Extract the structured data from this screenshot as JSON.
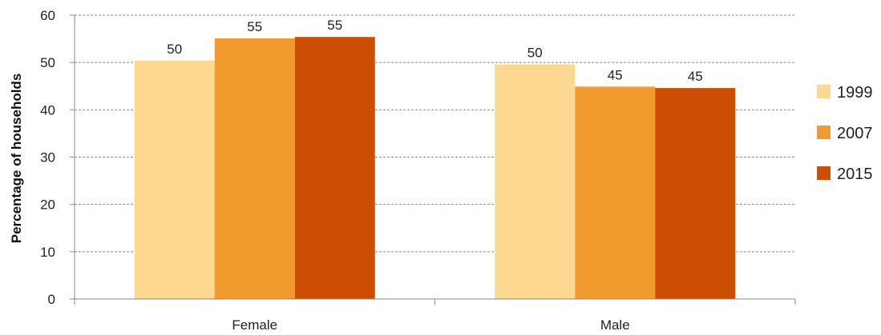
{
  "chart_data": {
    "type": "bar",
    "title": "",
    "xlabel": "",
    "ylabel": "Percentage of households",
    "categories": [
      "Female",
      "Male"
    ],
    "series": [
      {
        "name": "1999",
        "color": "#FDD890",
        "values": [
          50.4,
          49.6
        ],
        "labels": [
          "50",
          "50"
        ]
      },
      {
        "name": "2007",
        "color": "#F19B2E",
        "values": [
          55.1,
          44.9
        ],
        "labels": [
          "55",
          "45"
        ]
      },
      {
        "name": "2015",
        "color": "#CC4E02",
        "values": [
          55.4,
          44.6
        ],
        "labels": [
          "55",
          "45"
        ]
      }
    ],
    "ylim": [
      0,
      60
    ],
    "yticks": [
      "0",
      "10",
      "20",
      "30",
      "40",
      "50",
      "60"
    ],
    "grid": true,
    "legend_position": "right"
  }
}
